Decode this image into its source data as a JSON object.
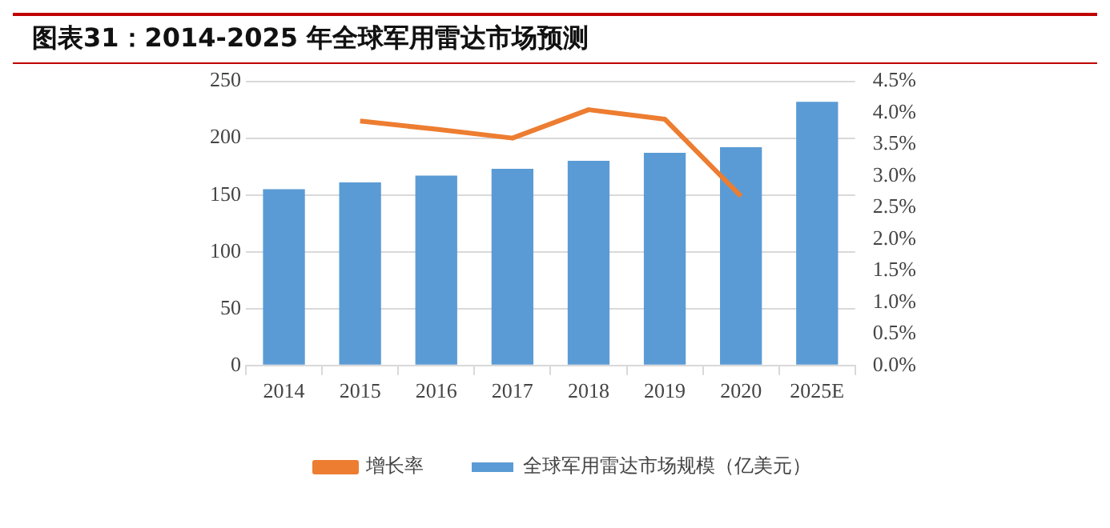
{
  "chart_data": {
    "type": "bar",
    "title": "图表31：2014-2025 年全球军用雷达市场预测",
    "categories": [
      "2014",
      "2015",
      "2016",
      "2017",
      "2018",
      "2019",
      "2020",
      "2025E"
    ],
    "series": [
      {
        "name": "全球军用雷达市场规模（亿美元）",
        "color": "#5b9bd5",
        "values": [
          155,
          161,
          167,
          173,
          180,
          187,
          192,
          232
        ]
      },
      {
        "name": "增长率",
        "type": "line",
        "axis": "y2",
        "color": "#ed7d31",
        "values": [
          null,
          3.87,
          3.74,
          3.6,
          4.05,
          3.9,
          2.68,
          null
        ]
      }
    ],
    "ylim": [
      0,
      250
    ],
    "yticks": [
      0,
      50,
      100,
      150,
      200,
      250
    ],
    "y2lim": [
      0,
      4.5
    ],
    "y2ticks": [
      {
        "value": 0,
        "label": "0.0%"
      },
      {
        "value": 0.5,
        "label": "0.5%"
      },
      {
        "value": 1,
        "label": "1.0%"
      },
      {
        "value": 1.5,
        "label": "1.5%"
      },
      {
        "value": 2,
        "label": "2.0%"
      },
      {
        "value": 2.5,
        "label": "2.5%"
      },
      {
        "value": 3,
        "label": "3.0%"
      },
      {
        "value": 3.5,
        "label": "3.5%"
      },
      {
        "value": 4,
        "label": "4.0%"
      },
      {
        "value": 4.5,
        "label": "4.5%"
      }
    ],
    "grid": "y",
    "legend": "bottom",
    "marker": "none"
  }
}
